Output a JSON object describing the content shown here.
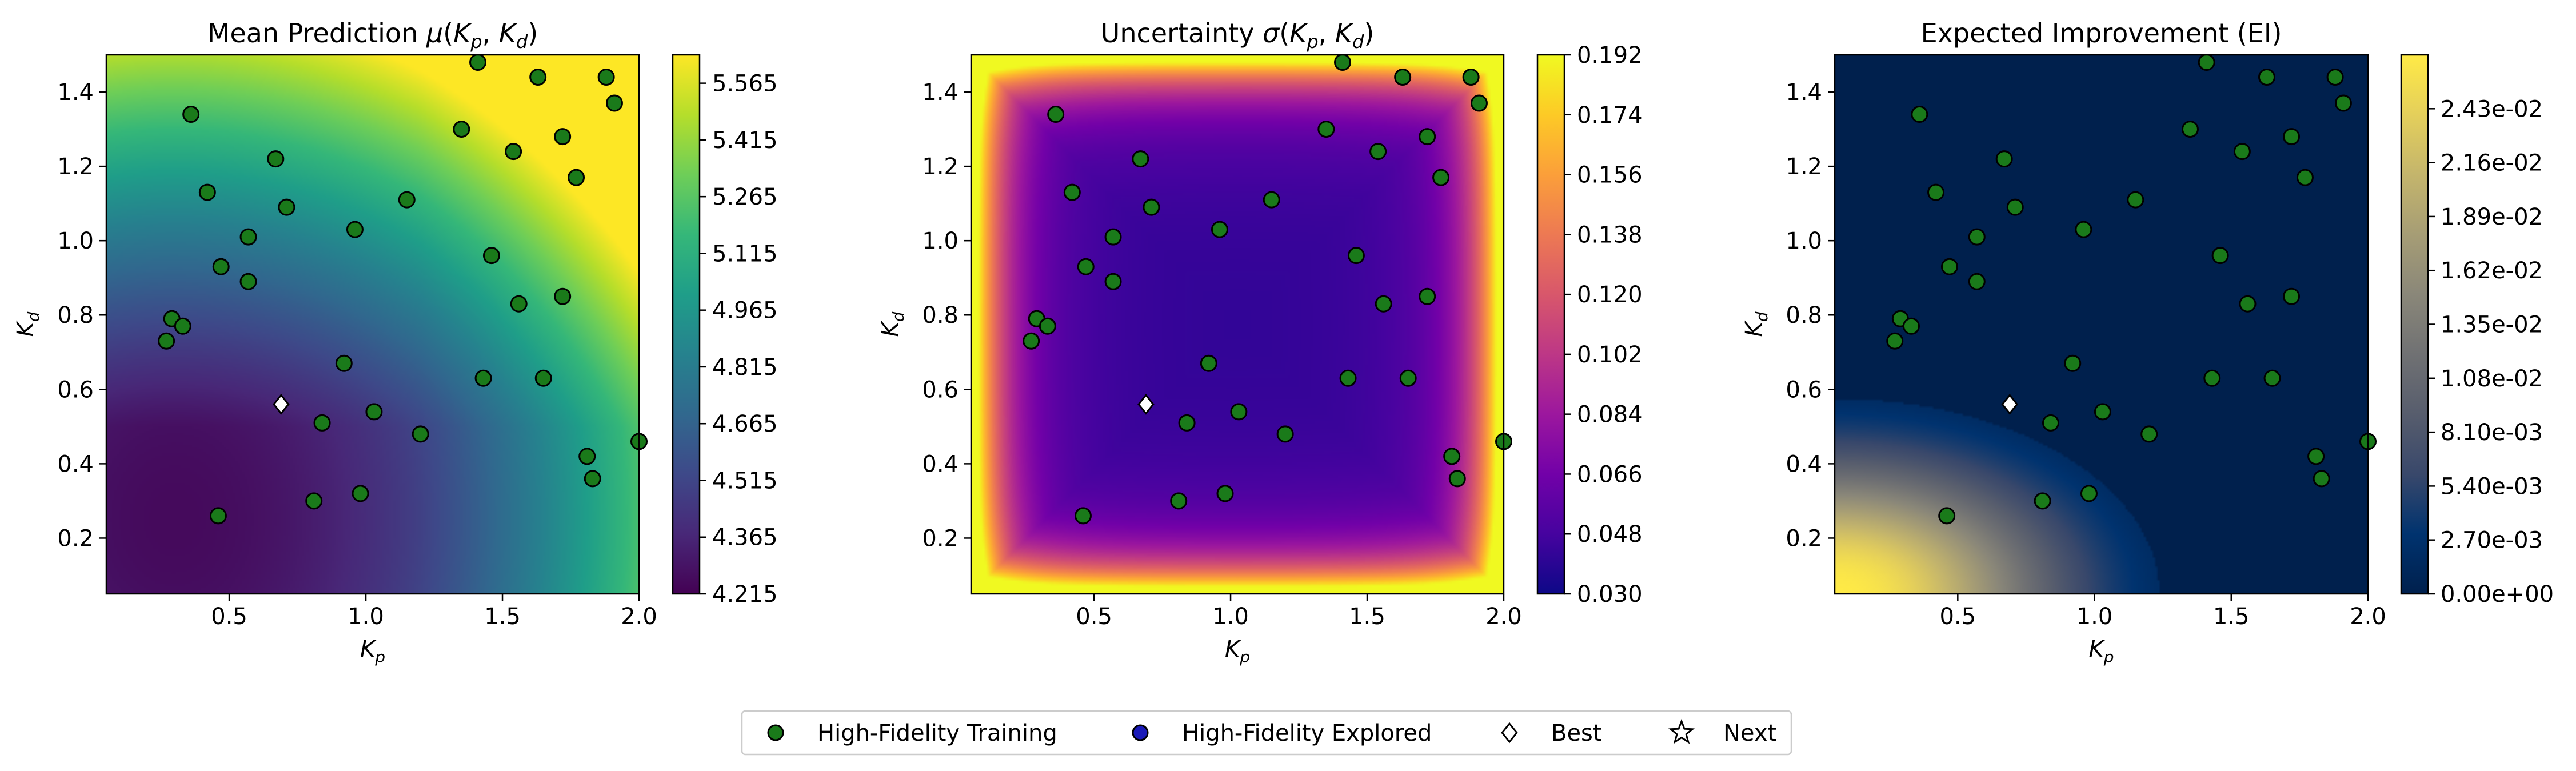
{
  "figure": {
    "legend": {
      "entries": [
        {
          "label": "High-Fidelity Training",
          "marker": "circle",
          "color": "#1a7a1a"
        },
        {
          "label": "High-Fidelity Explored",
          "marker": "circle",
          "color": "#1a1ab8"
        },
        {
          "label": "Best",
          "marker": "diamond",
          "color": "#ffffff"
        },
        {
          "label": "Next",
          "marker": "star",
          "color": "#ffffff"
        }
      ],
      "placement": "bottom-center"
    }
  },
  "chart_data": [
    {
      "type": "heatmap",
      "title": "Mean Prediction μ(K_p, K_d)",
      "title_plain": "Mean Prediction ",
      "title_math": "μ(K_p, K_d)",
      "xlabel": "K_p",
      "ylabel": "K_d",
      "xlim": [
        0.05,
        2.0
      ],
      "ylim": [
        0.05,
        1.5
      ],
      "x_ticks": [
        0.5,
        1.0,
        1.5,
        2.0
      ],
      "x_tick_labels": [
        "0.5",
        "1.0",
        "1.5",
        "2.0"
      ],
      "y_ticks": [
        0.2,
        0.4,
        0.6,
        0.8,
        1.0,
        1.2,
        1.4
      ],
      "y_tick_labels": [
        "0.2",
        "0.4",
        "0.6",
        "0.8",
        "1.0",
        "1.2",
        "1.4"
      ],
      "colormap": "viridis",
      "colorbar": {
        "range": [
          4.215,
          5.64
        ],
        "ticks": [
          4.215,
          4.365,
          4.515,
          4.665,
          4.815,
          4.965,
          5.115,
          5.265,
          5.415,
          5.565
        ],
        "tick_labels": [
          "4.215",
          "4.365",
          "4.515",
          "4.665",
          "4.815",
          "4.965",
          "5.115",
          "5.265",
          "5.415",
          "5.565"
        ]
      }
    },
    {
      "type": "heatmap",
      "title": "Uncertainty σ(K_p, K_d)",
      "title_plain": "Uncertainty ",
      "title_math": "σ(K_p, K_d)",
      "xlabel": "K_p",
      "ylabel": "K_d",
      "xlim": [
        0.05,
        2.0
      ],
      "ylim": [
        0.05,
        1.5
      ],
      "x_ticks": [
        0.5,
        1.0,
        1.5,
        2.0
      ],
      "x_tick_labels": [
        "0.5",
        "1.0",
        "1.5",
        "2.0"
      ],
      "y_ticks": [
        0.2,
        0.4,
        0.6,
        0.8,
        1.0,
        1.2,
        1.4
      ],
      "y_tick_labels": [
        "0.2",
        "0.4",
        "0.6",
        "0.8",
        "1.0",
        "1.2",
        "1.4"
      ],
      "colormap": "plasma",
      "colorbar": {
        "range": [
          0.03,
          0.192
        ],
        "ticks": [
          0.03,
          0.048,
          0.066,
          0.084,
          0.102,
          0.12,
          0.138,
          0.156,
          0.174,
          0.192
        ],
        "tick_labels": [
          "0.030",
          "0.048",
          "0.066",
          "0.084",
          "0.102",
          "0.120",
          "0.138",
          "0.156",
          "0.174",
          "0.192"
        ]
      }
    },
    {
      "type": "heatmap",
      "title": "Expected Improvement (EI)",
      "title_plain": "Expected Improvement (EI)",
      "title_math": "",
      "xlabel": "K_p",
      "ylabel": "K_d",
      "xlim": [
        0.05,
        2.0
      ],
      "ylim": [
        0.05,
        1.5
      ],
      "x_ticks": [
        0.5,
        1.0,
        1.5,
        2.0
      ],
      "x_tick_labels": [
        "0.5",
        "1.0",
        "1.5",
        "2.0"
      ],
      "y_ticks": [
        0.2,
        0.4,
        0.6,
        0.8,
        1.0,
        1.2,
        1.4
      ],
      "y_tick_labels": [
        "0.2",
        "0.4",
        "0.6",
        "0.8",
        "1.0",
        "1.2",
        "1.4"
      ],
      "colormap": "cividis",
      "colorbar": {
        "range": [
          0.0,
          0.027
        ],
        "ticks": [
          0.0,
          0.0027,
          0.0054,
          0.0081,
          0.0108,
          0.0135,
          0.0162,
          0.0189,
          0.0216,
          0.0243
        ],
        "tick_labels": [
          "0.00e+00",
          "2.70e-03",
          "5.40e-03",
          "8.10e-03",
          "1.08e-02",
          "1.35e-02",
          "1.62e-02",
          "1.89e-02",
          "2.16e-02",
          "2.43e-02"
        ]
      }
    }
  ],
  "points": {
    "training": [
      [
        0.36,
        1.34
      ],
      [
        0.42,
        1.13
      ],
      [
        0.67,
        1.22
      ],
      [
        0.71,
        1.09
      ],
      [
        0.57,
        1.01
      ],
      [
        0.47,
        0.93
      ],
      [
        0.57,
        0.89
      ],
      [
        0.29,
        0.79
      ],
      [
        0.33,
        0.77
      ],
      [
        0.27,
        0.73
      ],
      [
        0.96,
        1.03
      ],
      [
        1.15,
        1.11
      ],
      [
        1.35,
        1.3
      ],
      [
        1.41,
        1.48
      ],
      [
        1.54,
        1.24
      ],
      [
        1.63,
        1.44
      ],
      [
        1.72,
        1.28
      ],
      [
        1.88,
        1.44
      ],
      [
        1.91,
        1.37
      ],
      [
        1.77,
        1.17
      ],
      [
        1.46,
        0.96
      ],
      [
        1.56,
        0.83
      ],
      [
        1.72,
        0.85
      ],
      [
        0.92,
        0.67
      ],
      [
        1.03,
        0.54
      ],
      [
        1.2,
        0.48
      ],
      [
        0.84,
        0.51
      ],
      [
        1.43,
        0.63
      ],
      [
        1.65,
        0.63
      ],
      [
        0.81,
        0.3
      ],
      [
        0.98,
        0.32
      ],
      [
        0.46,
        0.26
      ],
      [
        1.81,
        0.42
      ],
      [
        1.83,
        0.36
      ],
      [
        2.0,
        0.46
      ]
    ],
    "explored": [],
    "best": [
      0.69,
      0.56
    ],
    "next": null
  }
}
